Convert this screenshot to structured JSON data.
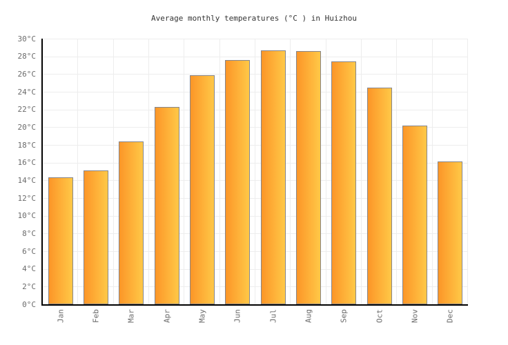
{
  "chart_data": {
    "type": "bar",
    "title": "Average monthly temperatures (°C ) in Huizhou",
    "categories": [
      "Jan",
      "Feb",
      "Mar",
      "Apr",
      "May",
      "Jun",
      "Jul",
      "Aug",
      "Sep",
      "Oct",
      "Nov",
      "Dec"
    ],
    "values": [
      14.3,
      15.1,
      18.4,
      22.3,
      25.9,
      27.6,
      28.7,
      28.6,
      27.4,
      24.5,
      20.2,
      16.1
    ],
    "unit": "°C",
    "xlabel": "",
    "ylabel": "",
    "ylim": [
      0,
      30
    ],
    "y_tick_step": 2,
    "y_tick_labels": [
      "0°C",
      "2°C",
      "4°C",
      "6°C",
      "8°C",
      "10°C",
      "12°C",
      "14°C",
      "16°C",
      "18°C",
      "20°C",
      "22°C",
      "24°C",
      "26°C",
      "28°C",
      "30°C"
    ],
    "grid": "on",
    "legend": "none"
  },
  "colors": {
    "bar_fill_left": "#fc9628",
    "bar_fill_right": "#ffc847",
    "bar_border": "#85858b",
    "gridline": "#ededed",
    "axis": "#000000",
    "tick_label": "#6b6b6b",
    "title": "#333333",
    "background": "#ffffff"
  }
}
